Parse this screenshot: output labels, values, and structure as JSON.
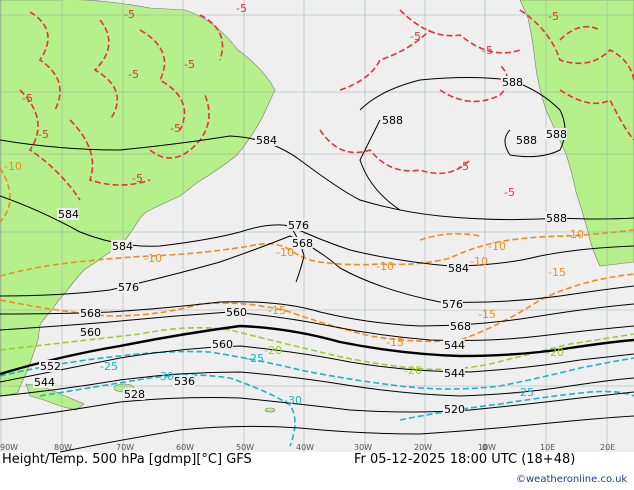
{
  "footer": {
    "title": "Height/Temp. 500 hPa [gdmp][°C] GFS",
    "valid_time": "Fr 05-12-2025 18:00 UTC (18+48)",
    "credit": "©weatheronline.co.uk"
  },
  "colors": {
    "land": "#b6f08a",
    "ocean": "#efefef",
    "height_contour": "#000000",
    "temp_warm": "#e8313a",
    "temp_mid": "#f08c1f",
    "temp_cold_green": "#9acd32",
    "temp_cold": "#19b4c8"
  },
  "longitude_labels": [
    "90W",
    "80W",
    "70W",
    "60W",
    "50W",
    "40W",
    "30W",
    "20W",
    "10W",
    "0",
    "10E",
    "20E"
  ],
  "height_labels": [
    "584",
    "588",
    "588",
    "588",
    "588",
    "584",
    "584",
    "576",
    "568",
    "576",
    "584",
    "588",
    "568",
    "560",
    "576",
    "568",
    "560",
    "544",
    "560",
    "552",
    "544",
    "536",
    "528",
    "544",
    "520"
  ],
  "temp_labels": [
    "-5",
    "-5",
    "-5",
    "-5",
    "-5",
    "-5",
    "-5",
    "-5",
    "-5",
    "-5",
    "-5",
    "-5",
    "-5",
    "-10",
    "-10",
    "-10",
    "-10",
    "-10",
    "-10",
    "-10",
    "-15",
    "-15",
    "-15",
    "-15",
    "-20",
    "-20",
    "-20",
    "-25",
    "-25",
    "-25",
    "-30",
    "-30"
  ]
}
